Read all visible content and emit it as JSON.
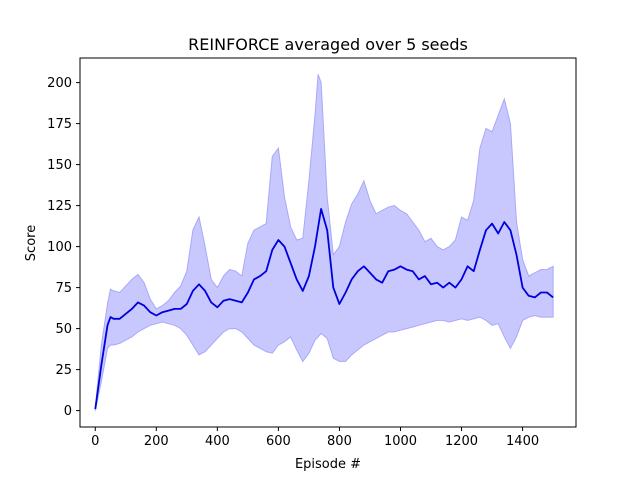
{
  "chart_data": {
    "type": "line",
    "title": "REINFORCE averaged over 5 seeds",
    "xlabel": "Episode #",
    "ylabel": "Score",
    "xlim": [
      -50,
      1575
    ],
    "ylim": [
      -10,
      215
    ],
    "xticks": [
      0,
      200,
      400,
      600,
      800,
      1000,
      1200,
      1400
    ],
    "yticks": [
      0,
      25,
      50,
      75,
      100,
      125,
      150,
      175,
      200
    ],
    "grid": false,
    "legend": "none",
    "colors": {
      "mean": "#0000dd",
      "band_fill": "#c8c8ff",
      "band_edge": "#a8a8f8"
    },
    "series": [
      {
        "role": "mean",
        "x": [
          0,
          20,
          40,
          50,
          60,
          80,
          100,
          120,
          140,
          160,
          180,
          200,
          220,
          240,
          260,
          280,
          300,
          320,
          340,
          360,
          380,
          400,
          420,
          440,
          460,
          480,
          500,
          520,
          540,
          560,
          580,
          600,
          620,
          640,
          660,
          680,
          700,
          720,
          740,
          760,
          780,
          800,
          820,
          840,
          860,
          880,
          900,
          920,
          940,
          960,
          980,
          1000,
          1020,
          1040,
          1060,
          1080,
          1100,
          1120,
          1140,
          1160,
          1180,
          1200,
          1220,
          1240,
          1260,
          1280,
          1300,
          1320,
          1340,
          1360,
          1380,
          1400,
          1420,
          1440,
          1460,
          1480,
          1500
        ],
        "y": [
          1,
          28,
          52,
          57,
          56,
          56,
          59,
          62,
          66,
          64,
          60,
          58,
          60,
          61,
          62,
          62,
          65,
          73,
          77,
          73,
          66,
          63,
          67,
          68,
          67,
          66,
          72,
          80,
          82,
          85,
          98,
          104,
          100,
          90,
          80,
          73,
          82,
          100,
          123,
          110,
          75,
          65,
          72,
          80,
          85,
          88,
          84,
          80,
          78,
          85,
          86,
          88,
          86,
          85,
          80,
          82,
          77,
          78,
          75,
          78,
          75,
          80,
          88,
          85,
          98,
          110,
          114,
          108,
          115,
          110,
          95,
          75,
          70,
          69,
          72,
          72,
          69
        ]
      },
      {
        "role": "upper",
        "x": [
          0,
          20,
          40,
          50,
          60,
          80,
          100,
          120,
          140,
          160,
          180,
          200,
          220,
          240,
          260,
          280,
          300,
          320,
          340,
          360,
          380,
          400,
          420,
          440,
          460,
          480,
          500,
          520,
          540,
          560,
          580,
          600,
          620,
          640,
          660,
          680,
          700,
          720,
          730,
          740,
          760,
          780,
          800,
          820,
          840,
          860,
          880,
          900,
          920,
          940,
          960,
          980,
          1000,
          1020,
          1040,
          1060,
          1080,
          1100,
          1120,
          1140,
          1160,
          1180,
          1200,
          1220,
          1240,
          1260,
          1280,
          1300,
          1320,
          1340,
          1360,
          1380,
          1400,
          1420,
          1440,
          1460,
          1480,
          1500
        ],
        "y": [
          2,
          40,
          65,
          74,
          73,
          72,
          76,
          80,
          83,
          78,
          68,
          62,
          64,
          67,
          72,
          76,
          85,
          110,
          118,
          100,
          80,
          75,
          82,
          86,
          85,
          82,
          102,
          110,
          112,
          114,
          155,
          160,
          130,
          112,
          104,
          105,
          140,
          180,
          205,
          200,
          130,
          95,
          100,
          115,
          126,
          132,
          140,
          128,
          120,
          122,
          124,
          125,
          122,
          120,
          115,
          110,
          103,
          105,
          100,
          98,
          100,
          104,
          118,
          116,
          128,
          160,
          172,
          170,
          180,
          190,
          175,
          115,
          92,
          82,
          84,
          86,
          86,
          88
        ]
      },
      {
        "role": "lower",
        "x": [
          0,
          20,
          40,
          50,
          60,
          80,
          100,
          120,
          140,
          160,
          180,
          200,
          220,
          240,
          260,
          280,
          300,
          320,
          340,
          360,
          380,
          400,
          420,
          440,
          460,
          480,
          500,
          520,
          540,
          560,
          580,
          600,
          620,
          640,
          660,
          680,
          700,
          720,
          740,
          760,
          780,
          800,
          820,
          840,
          860,
          880,
          900,
          920,
          940,
          960,
          980,
          1000,
          1020,
          1040,
          1060,
          1080,
          1100,
          1120,
          1140,
          1160,
          1180,
          1200,
          1220,
          1240,
          1260,
          1280,
          1300,
          1320,
          1340,
          1360,
          1380,
          1400,
          1420,
          1440,
          1460,
          1480,
          1500
        ],
        "y": [
          0,
          18,
          38,
          40,
          40,
          41,
          43,
          45,
          48,
          50,
          52,
          53,
          54,
          53,
          52,
          50,
          46,
          40,
          34,
          36,
          40,
          44,
          48,
          50,
          50,
          48,
          44,
          40,
          38,
          36,
          35,
          40,
          42,
          45,
          37,
          30,
          35,
          43,
          47,
          44,
          32,
          30,
          30,
          34,
          37,
          40,
          42,
          44,
          46,
          48,
          48,
          49,
          50,
          51,
          52,
          53,
          54,
          55,
          55,
          54,
          55,
          56,
          55,
          56,
          57,
          55,
          52,
          53,
          45,
          38,
          45,
          55,
          57,
          58,
          57,
          57,
          57
        ]
      }
    ]
  }
}
